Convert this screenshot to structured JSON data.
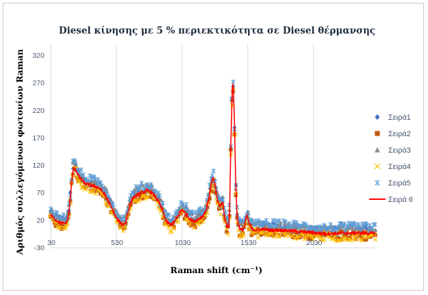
{
  "chart_data": {
    "type": "scatter",
    "title": "Diesel κίνησης με 5 % περιεκτικότητα σε Diesel θέρμανσης",
    "xlabel": "Raman shift (cm⁻¹)",
    "ylabel": "Αριθμός συλλεγόμενων φωτονίων Raman",
    "xlim": [
      30,
      2500
    ],
    "ylim": [
      -30,
      340
    ],
    "x_ticks": [
      30,
      530,
      1030,
      1530,
      2030
    ],
    "y_ticks": [
      -30,
      20,
      70,
      120,
      170,
      220,
      270,
      320
    ],
    "vertical_grid": true,
    "horizontal_grid": false,
    "legend_position": "right",
    "profile_points": [
      [
        30,
        30
      ],
      [
        60,
        22
      ],
      [
        100,
        16
      ],
      [
        130,
        14
      ],
      [
        150,
        16
      ],
      [
        170,
        35
      ],
      [
        185,
        75
      ],
      [
        200,
        112
      ],
      [
        215,
        116
      ],
      [
        235,
        104
      ],
      [
        255,
        96
      ],
      [
        275,
        90
      ],
      [
        300,
        86
      ],
      [
        330,
        84
      ],
      [
        360,
        82
      ],
      [
        390,
        80
      ],
      [
        420,
        74
      ],
      [
        450,
        64
      ],
      [
        480,
        50
      ],
      [
        510,
        34
      ],
      [
        530,
        24
      ],
      [
        560,
        15
      ],
      [
        580,
        12
      ],
      [
        600,
        16
      ],
      [
        620,
        36
      ],
      [
        640,
        52
      ],
      [
        660,
        62
      ],
      [
        690,
        66
      ],
      [
        720,
        70
      ],
      [
        750,
        72
      ],
      [
        770,
        74
      ],
      [
        800,
        70
      ],
      [
        830,
        62
      ],
      [
        860,
        50
      ],
      [
        890,
        32
      ],
      [
        910,
        18
      ],
      [
        940,
        12
      ],
      [
        970,
        16
      ],
      [
        1000,
        28
      ],
      [
        1030,
        40
      ],
      [
        1060,
        32
      ],
      [
        1090,
        22
      ],
      [
        1120,
        18
      ],
      [
        1150,
        22
      ],
      [
        1180,
        26
      ],
      [
        1210,
        36
      ],
      [
        1230,
        56
      ],
      [
        1250,
        84
      ],
      [
        1265,
        98
      ],
      [
        1280,
        84
      ],
      [
        1300,
        56
      ],
      [
        1320,
        44
      ],
      [
        1340,
        54
      ],
      [
        1350,
        30
      ],
      [
        1370,
        10
      ],
      [
        1385,
        6
      ],
      [
        1392,
        40
      ],
      [
        1400,
        150
      ],
      [
        1407,
        215
      ],
      [
        1413,
        262
      ],
      [
        1418,
        268
      ],
      [
        1424,
        240
      ],
      [
        1430,
        180
      ],
      [
        1438,
        90
      ],
      [
        1446,
        40
      ],
      [
        1455,
        16
      ],
      [
        1470,
        4
      ],
      [
        1490,
        2
      ],
      [
        1505,
        8
      ],
      [
        1515,
        22
      ],
      [
        1525,
        28
      ],
      [
        1540,
        14
      ],
      [
        1560,
        4
      ],
      [
        1600,
        2
      ],
      [
        1650,
        4
      ],
      [
        1700,
        2
      ],
      [
        1800,
        2
      ],
      [
        1900,
        0
      ],
      [
        2000,
        -2
      ],
      [
        2100,
        -4
      ],
      [
        2200,
        -4
      ],
      [
        2300,
        -3
      ],
      [
        2400,
        -3
      ],
      [
        2500,
        -4
      ]
    ],
    "series": [
      {
        "name": "Σειρά1",
        "marker": "diamond",
        "color": "#4472c4",
        "offset": 4,
        "noise": 8
      },
      {
        "name": "Σειρά2",
        "marker": "square",
        "color": "#c55a11",
        "offset": -4,
        "noise": 8
      },
      {
        "name": "Σειρά3",
        "marker": "triangle",
        "color": "#8c8c8c",
        "offset": 6,
        "noise": 8
      },
      {
        "name": "Σειρά4",
        "marker": "x",
        "color": "#ffc000",
        "offset": -6,
        "noise": 8
      },
      {
        "name": "Σειρά5",
        "marker": "star",
        "color": "#5b9bd5",
        "offset": 10,
        "noise": 8
      },
      {
        "name": "Σειρά 6",
        "marker": "line",
        "color": "#ff0000",
        "offset": 0,
        "noise": 3
      }
    ],
    "scatter_step": 10,
    "line_step": 3
  }
}
